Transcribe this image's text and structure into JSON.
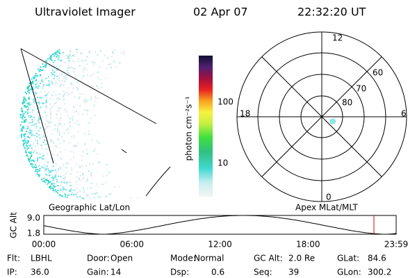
{
  "header": {
    "instrument": "Ultraviolet Imager",
    "date": "02 Apr 07",
    "time": "22:32:20 UT"
  },
  "image": {
    "label": "Geographic Lat/Lon"
  },
  "colorbar": {
    "label": "photon cm⁻²s⁻¹",
    "ticks": [
      "100",
      "10"
    ]
  },
  "polar": {
    "label": "Apex MLat/MLT",
    "mlt_labels": [
      "12",
      "18",
      "6",
      "0"
    ],
    "lat_labels": [
      "60",
      "70",
      "80"
    ]
  },
  "altitude": {
    "axis_label": "GC Alt",
    "yticks": [
      "9.0",
      "1.8"
    ],
    "xticks": [
      "00:00",
      "06:00",
      "12:00",
      "18:00",
      "23:59"
    ]
  },
  "info": [
    [
      {
        "label": "Flt:",
        "value": "LBHL"
      },
      {
        "label": "IP:",
        "value": "36.0"
      }
    ],
    [
      {
        "label": "Door:",
        "value": "Open"
      },
      {
        "label": "Gain:",
        "value": "14"
      }
    ],
    [
      {
        "label": "Mode:",
        "value": "Normal"
      },
      {
        "label": "Dsp:",
        "value": "0.6"
      }
    ],
    [
      {
        "label": "GC Alt:",
        "value": "2.0 Re"
      },
      {
        "label": "Seq:",
        "value": "39"
      }
    ],
    [
      {
        "label": "GLat:",
        "value": "84.6"
      },
      {
        "label": "GLon:",
        "value": "300.2"
      }
    ]
  ]
}
